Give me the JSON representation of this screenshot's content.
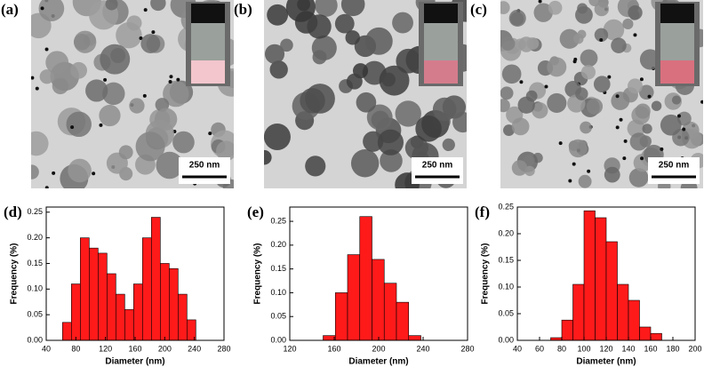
{
  "images": [
    {
      "label": "(a)",
      "scale_bar": "250 nm"
    },
    {
      "label": "(b)",
      "scale_bar": "250 nm"
    },
    {
      "label": "(c)",
      "scale_bar": "250 nm"
    }
  ],
  "chart_data": [
    {
      "type": "histogram",
      "label": "(d)",
      "x_label": "Diameter (nm)",
      "y_label": "Frequency (%)",
      "color": "#ff1a1a",
      "bins": [
        62,
        74,
        86,
        98,
        110,
        122,
        134,
        146,
        158,
        170,
        182,
        194,
        206,
        218,
        230,
        242
      ],
      "values": [
        0.035,
        0.11,
        0.2,
        0.18,
        0.17,
        0.13,
        0.09,
        0.06,
        0.11,
        0.2,
        0.24,
        0.15,
        0.14,
        0.09,
        0.04
      ],
      "xlim": [
        40,
        280
      ],
      "xticks": [
        40,
        80,
        120,
        160,
        200,
        240,
        280
      ],
      "ylim": [
        0,
        0.26
      ],
      "yticks": [
        {
          "value": 0,
          "label": "0.00"
        },
        {
          "value": 0.05,
          "label": "0.05"
        },
        {
          "value": 0.1,
          "label": "0.10"
        },
        {
          "value": 0.15,
          "label": "0.15"
        },
        {
          "value": 0.2,
          "label": "0.20"
        },
        {
          "value": 0.25,
          "label": "0.25"
        }
      ]
    },
    {
      "type": "histogram",
      "label": "(e)",
      "x_label": "Diameter (nm)",
      "y_label": "Frequency (%)",
      "color": "#ff1a1a",
      "bins": [
        150,
        161,
        172,
        183,
        194,
        205,
        216,
        227,
        238
      ],
      "values": [
        0.01,
        0.1,
        0.18,
        0.26,
        0.17,
        0.12,
        0.08,
        0.01
      ],
      "xlim": [
        120,
        280
      ],
      "xticks": [
        120,
        160,
        200,
        240,
        280
      ],
      "ylim": [
        0,
        0.28
      ],
      "yticks": [
        {
          "value": 0,
          "label": "0.00"
        },
        {
          "value": 0.05,
          "label": "0.05"
        },
        {
          "value": 0.1,
          "label": "0.10"
        },
        {
          "value": 0.15,
          "label": "0.15"
        },
        {
          "value": 0.2,
          "label": "0.20"
        },
        {
          "value": 0.25,
          "label": "0.25"
        }
      ]
    },
    {
      "type": "histogram",
      "label": "(f)",
      "x_label": "Diameter (nm)",
      "y_label": "Frequency (%)",
      "color": "#ff1a1a",
      "bins": [
        70,
        80,
        90,
        100,
        110,
        120,
        130,
        140,
        150,
        160,
        170
      ],
      "values": [
        0.005,
        0.038,
        0.105,
        0.243,
        0.23,
        0.185,
        0.105,
        0.075,
        0.025,
        0.013
      ],
      "xlim": [
        40,
        200
      ],
      "xticks": [
        40,
        60,
        80,
        100,
        120,
        140,
        160,
        180,
        200
      ],
      "ylim": [
        0,
        0.25
      ],
      "yticks": [
        {
          "value": 0,
          "label": "0.00"
        },
        {
          "value": 0.05,
          "label": "0.05"
        },
        {
          "value": 0.1,
          "label": "0.10"
        },
        {
          "value": 0.15,
          "label": "0.15"
        },
        {
          "value": 0.2,
          "label": "0.20"
        },
        {
          "value": 0.25,
          "label": "0.25"
        }
      ]
    }
  ]
}
